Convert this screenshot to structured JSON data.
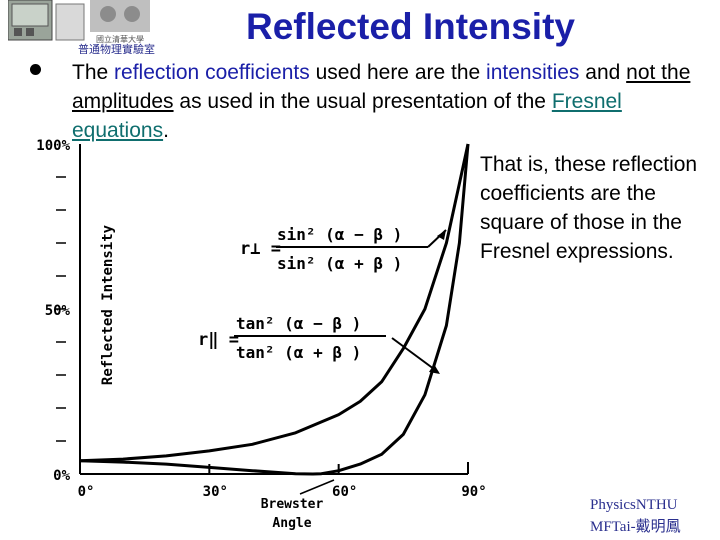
{
  "slide": {
    "title": "Reflected Intensity",
    "logo_caption": "普通物理實驗室",
    "logo_small_text": "國立清華大學"
  },
  "bullet": {
    "part1": "The ",
    "term1": "reflection coefficients",
    "part2": " used here are the ",
    "term2": "intensities",
    "part3": " and ",
    "term3": "not the amplitudes",
    "part4": " as used in the usual presentation of the ",
    "term4": "Fresnel equations",
    "part5": "."
  },
  "side_note": "That is, these reflection coefficients are the square of those in the Fresnel expressions.",
  "credit": {
    "line1": "PhysicsNTHU",
    "line2": "MFTai-戴明鳳"
  },
  "chart_data": {
    "type": "line",
    "ylabel": "Reflected Intensity",
    "xlabel": "",
    "x_ticks": [
      "0°",
      "30°",
      "60°",
      "90°"
    ],
    "y_ticks": [
      "0%",
      "50%",
      "100%"
    ],
    "xlim": [
      0,
      90
    ],
    "ylim": [
      0,
      100
    ],
    "brewster_label": [
      "Brewster",
      "Angle"
    ],
    "formula_perp": {
      "lhs": "r⊥ =",
      "num": "sin² (α − β )",
      "den": "sin² (α + β )"
    },
    "formula_par": {
      "lhs": "r‖ =",
      "num": "tan² (α − β )",
      "den": "tan² (α + β )"
    },
    "series": [
      {
        "key": "perpendicular",
        "x": [
          0,
          10,
          20,
          30,
          40,
          50,
          60,
          65,
          70,
          75,
          80,
          85,
          88,
          90
        ],
        "y": [
          4,
          4.5,
          5.5,
          7,
          9,
          12.5,
          18,
          22,
          28,
          38,
          50,
          70,
          88,
          100
        ]
      },
      {
        "key": "parallel",
        "x": [
          0,
          10,
          20,
          30,
          40,
          50,
          54,
          56,
          60,
          65,
          70,
          75,
          80,
          85,
          88,
          90
        ],
        "y": [
          4,
          3.6,
          3,
          2,
          1,
          0.1,
          0,
          0.1,
          1,
          3,
          6,
          12,
          24,
          45,
          70,
          100
        ]
      }
    ]
  }
}
